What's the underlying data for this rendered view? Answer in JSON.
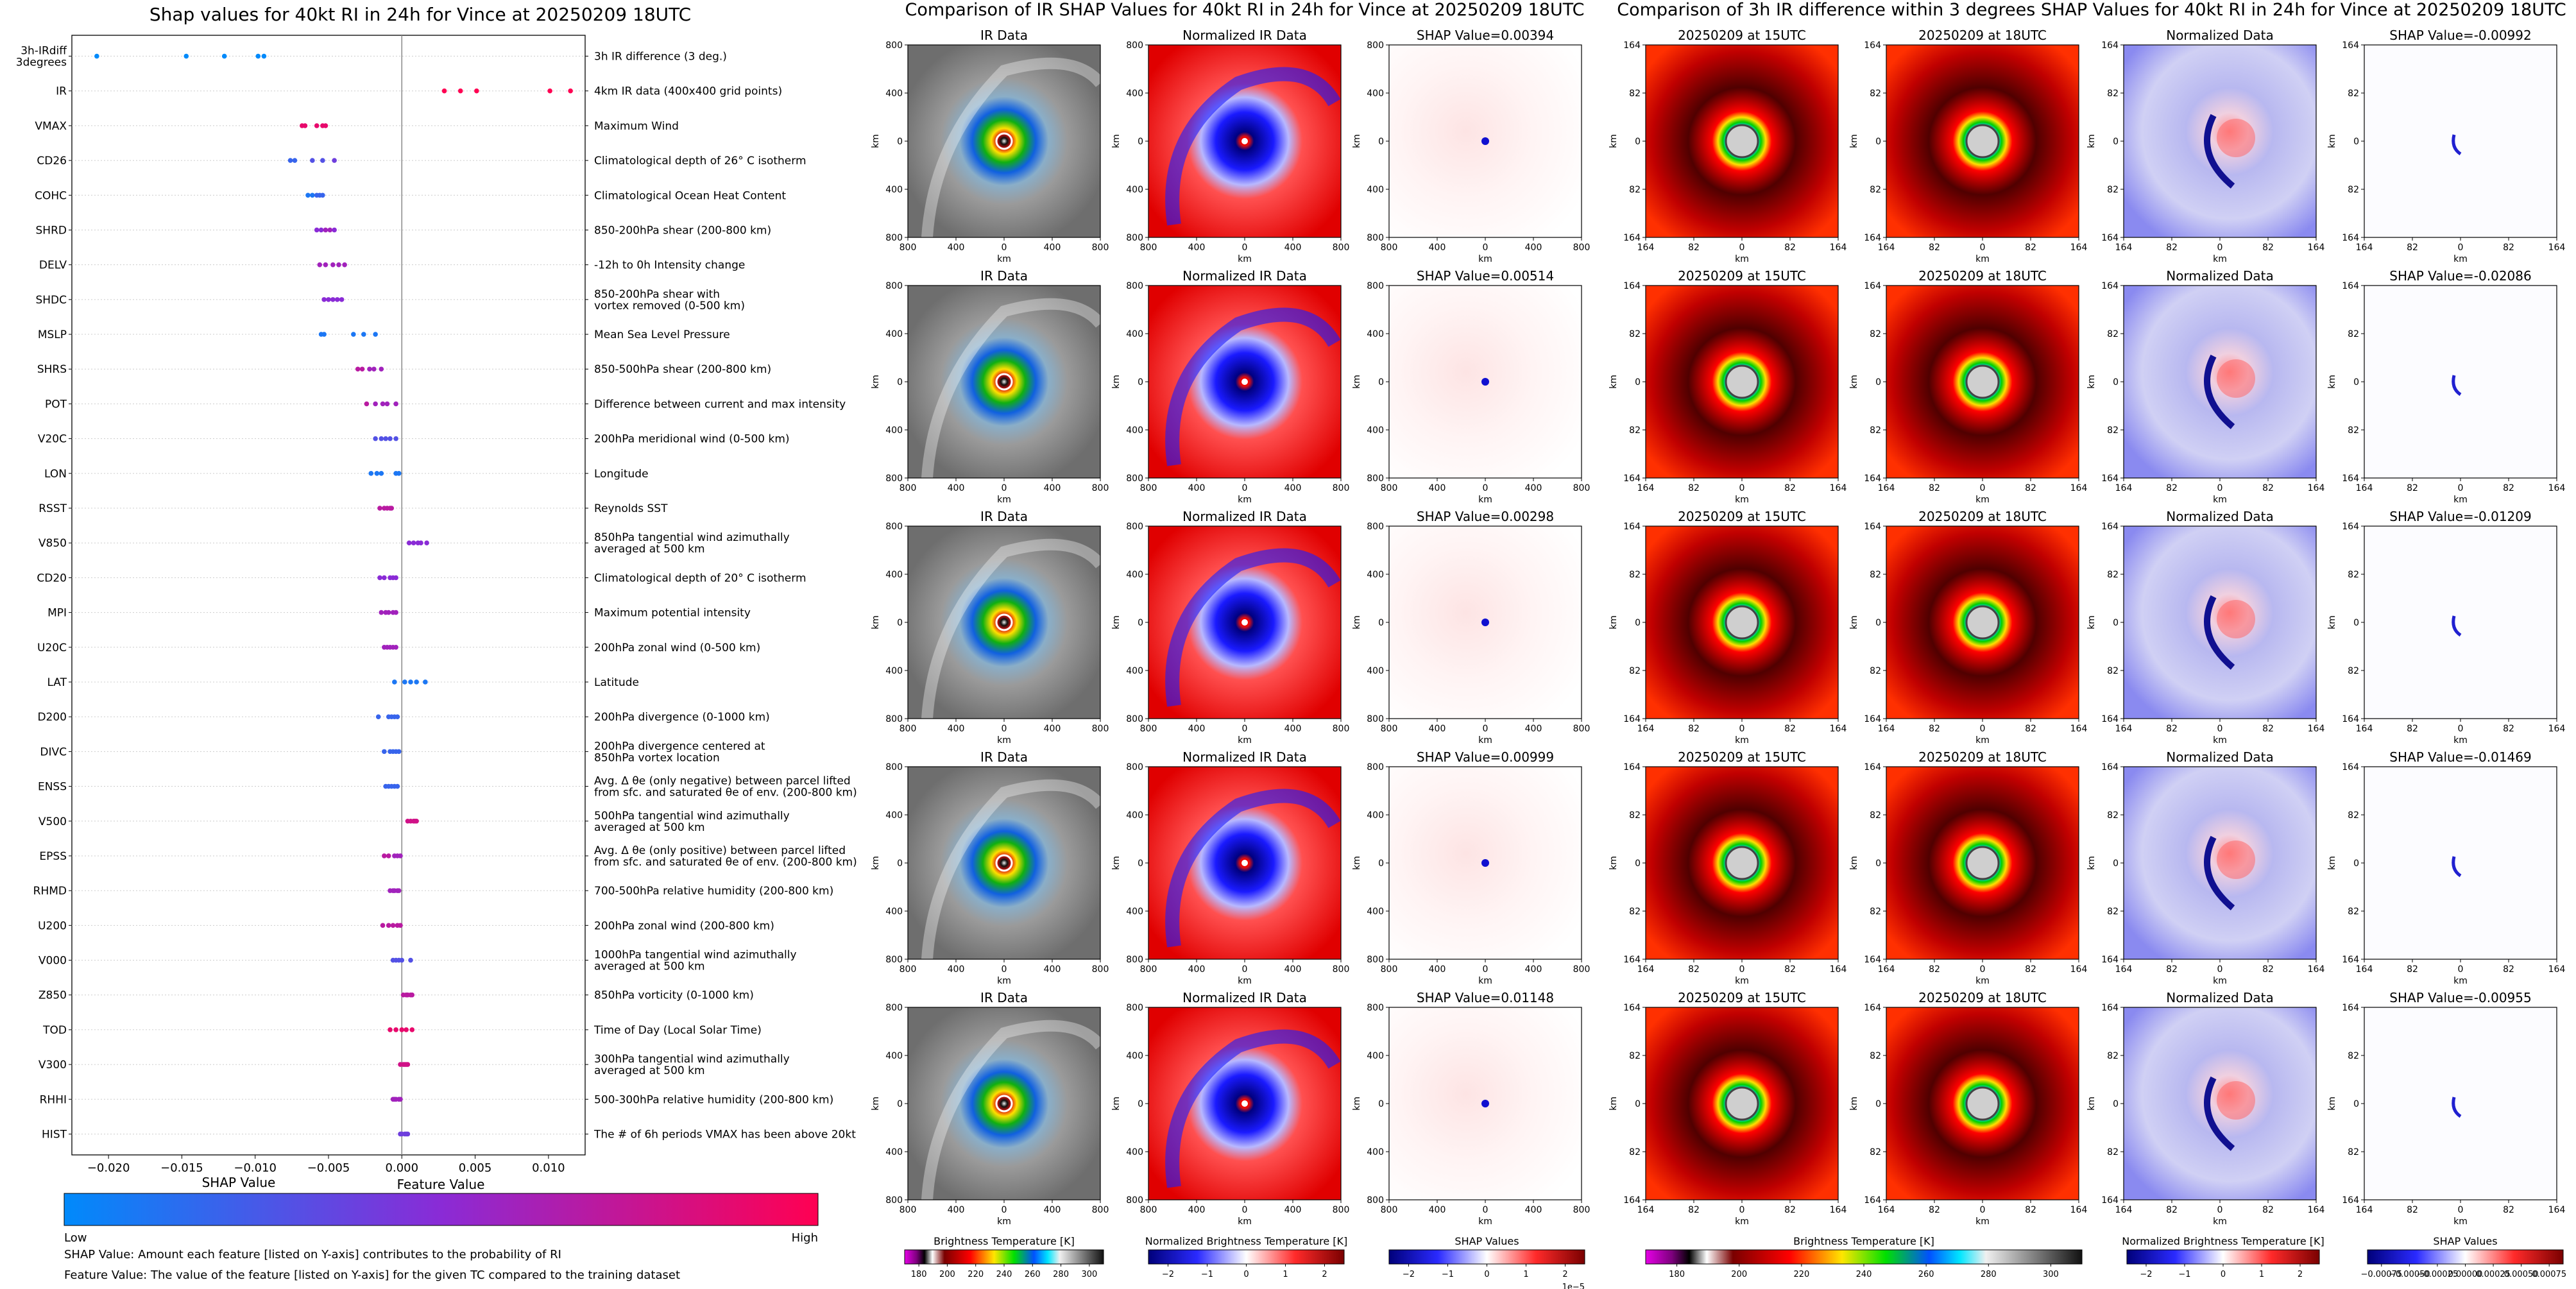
{
  "left_panel": {
    "title": "Shap values for 40kt RI in 24h for Vince at 20250209 18UTC",
    "xlabel": "SHAP Value",
    "xticks": [
      "−0.020",
      "−0.015",
      "−0.010",
      "−0.005",
      "0.000",
      "0.005",
      "0.010"
    ],
    "colorbar_title": "Feature Value",
    "colorbar_low": "Low",
    "colorbar_high": "High",
    "notes": [
      "SHAP Value: Amount each feature [listed on Y-axis] contributes to the probability of RI",
      "Feature Value: The value of the feature [listed on Y-axis] for the given TC compared to the training dataset"
    ]
  },
  "chart_data": [
    {
      "type": "scatter",
      "title": "Shap values for 40kt RI in 24h for Vince at 20250209 18UTC",
      "xlabel": "SHAP Value",
      "xlim": [
        -0.0225,
        0.0125
      ],
      "colors": {
        "low": "#008afb",
        "high": "#ff0052"
      },
      "features": [
        {
          "name": "3h-IRdiff\n3degrees",
          "desc": "3h IR difference (3 deg.)",
          "points": [
            [
              -0.0208,
              0
            ],
            [
              -0.0147,
              0
            ],
            [
              -0.0121,
              0
            ],
            [
              -0.0098,
              0
            ],
            [
              -0.0094,
              0
            ]
          ]
        },
        {
          "name": "IR",
          "desc": "4km IR data (400x400 grid points)",
          "points": [
            [
              0.0029,
              1
            ],
            [
              0.004,
              1
            ],
            [
              0.0051,
              1
            ],
            [
              0.0101,
              1
            ],
            [
              0.0115,
              1
            ]
          ]
        },
        {
          "name": "VMAX",
          "desc": "Maximum Wind",
          "points": [
            [
              -0.0068,
              0.9
            ],
            [
              -0.0066,
              0.9
            ],
            [
              -0.0058,
              0.9
            ],
            [
              -0.0054,
              0.9
            ],
            [
              -0.0052,
              0.9
            ]
          ]
        },
        {
          "name": "CD26",
          "desc": "Climatological depth of 26° C isotherm",
          "points": [
            [
              -0.0076,
              0.2
            ],
            [
              -0.0073,
              0.2
            ],
            [
              -0.0061,
              0.3
            ],
            [
              -0.0054,
              0.3
            ],
            [
              -0.0046,
              0.4
            ]
          ]
        },
        {
          "name": "COHC",
          "desc": "Climatological Ocean Heat Content",
          "points": [
            [
              -0.0064,
              0.1
            ],
            [
              -0.0061,
              0.1
            ],
            [
              -0.0058,
              0.2
            ],
            [
              -0.0056,
              0.2
            ],
            [
              -0.0054,
              0.2
            ]
          ]
        },
        {
          "name": "SHRD",
          "desc": "850-200hPa shear (200-800 km)",
          "points": [
            [
              -0.0058,
              0.5
            ],
            [
              -0.0055,
              0.5
            ],
            [
              -0.0052,
              0.6
            ],
            [
              -0.0049,
              0.6
            ],
            [
              -0.0046,
              0.5
            ]
          ]
        },
        {
          "name": "DELV",
          "desc": "-12h to 0h Intensity change",
          "points": [
            [
              -0.0056,
              0.6
            ],
            [
              -0.0052,
              0.6
            ],
            [
              -0.0047,
              0.6
            ],
            [
              -0.0043,
              0.6
            ],
            [
              -0.0039,
              0.6
            ]
          ]
        },
        {
          "name": "SHDC",
          "desc": "850-200hPa shear with\nvortex removed (0-500 km)",
          "points": [
            [
              -0.0053,
              0.5
            ],
            [
              -0.005,
              0.5
            ],
            [
              -0.0047,
              0.5
            ],
            [
              -0.0044,
              0.5
            ],
            [
              -0.0041,
              0.5
            ]
          ]
        },
        {
          "name": "MSLP",
          "desc": "Mean Sea Level Pressure",
          "points": [
            [
              -0.0055,
              0.1
            ],
            [
              -0.0053,
              0.1
            ],
            [
              -0.0033,
              0.1
            ],
            [
              -0.0026,
              0.1
            ],
            [
              -0.0018,
              0.1
            ]
          ]
        },
        {
          "name": "SHRS",
          "desc": "850-500hPa shear (200-800 km)",
          "points": [
            [
              -0.003,
              0.7
            ],
            [
              -0.0027,
              0.7
            ],
            [
              -0.0022,
              0.6
            ],
            [
              -0.0019,
              0.6
            ],
            [
              -0.0014,
              0.6
            ]
          ]
        },
        {
          "name": "POT",
          "desc": "Difference between current and max intensity",
          "points": [
            [
              -0.0024,
              0.7
            ],
            [
              -0.0018,
              0.6
            ],
            [
              -0.0013,
              0.6
            ],
            [
              -0.001,
              0.6
            ],
            [
              -0.0004,
              0.6
            ]
          ]
        },
        {
          "name": "V20C",
          "desc": "200hPa meridional wind (0-500 km)",
          "points": [
            [
              -0.0018,
              0.3
            ],
            [
              -0.0014,
              0.3
            ],
            [
              -0.0011,
              0.3
            ],
            [
              -0.0008,
              0.3
            ],
            [
              -0.0004,
              0.3
            ]
          ]
        },
        {
          "name": "LON",
          "desc": "Longitude",
          "points": [
            [
              -0.0021,
              0.1
            ],
            [
              -0.0017,
              0.1
            ],
            [
              -0.0014,
              0.1
            ],
            [
              -0.0004,
              0.1
            ],
            [
              -0.0002,
              0.1
            ]
          ]
        },
        {
          "name": "RSST",
          "desc": "Reynolds SST",
          "points": [
            [
              -0.0015,
              0.7
            ],
            [
              -0.0012,
              0.7
            ],
            [
              -0.001,
              0.7
            ],
            [
              -0.0008,
              0.7
            ],
            [
              -0.0007,
              0.7
            ]
          ]
        },
        {
          "name": "V850",
          "desc": "850hPa tangential wind azimuthally\naveraged at 500 km",
          "points": [
            [
              0.0005,
              0.5
            ],
            [
              0.0008,
              0.5
            ],
            [
              0.0011,
              0.5
            ],
            [
              0.0013,
              0.5
            ],
            [
              0.0017,
              0.5
            ]
          ]
        },
        {
          "name": "CD20",
          "desc": "Climatological depth of 20° C isotherm",
          "points": [
            [
              -0.0015,
              0.5
            ],
            [
              -0.0012,
              0.5
            ],
            [
              -0.0008,
              0.5
            ],
            [
              -0.0006,
              0.5
            ],
            [
              -0.0004,
              0.5
            ]
          ]
        },
        {
          "name": "MPI",
          "desc": "Maximum potential intensity",
          "points": [
            [
              -0.0014,
              0.6
            ],
            [
              -0.0011,
              0.6
            ],
            [
              -0.0009,
              0.6
            ],
            [
              -0.0006,
              0.6
            ],
            [
              -0.0004,
              0.6
            ]
          ]
        },
        {
          "name": "U20C",
          "desc": "200hPa zonal wind (0-500 km)",
          "points": [
            [
              -0.0012,
              0.6
            ],
            [
              -0.001,
              0.6
            ],
            [
              -0.0008,
              0.6
            ],
            [
              -0.0006,
              0.6
            ],
            [
              -0.0004,
              0.6
            ]
          ]
        },
        {
          "name": "LAT",
          "desc": "Latitude",
          "points": [
            [
              -0.0005,
              0.1
            ],
            [
              0.0002,
              0.1
            ],
            [
              0.0006,
              0.1
            ],
            [
              0.001,
              0.1
            ],
            [
              0.0016,
              0.1
            ]
          ]
        },
        {
          "name": "D200",
          "desc": "200hPa divergence (0-1000 km)",
          "points": [
            [
              -0.0016,
              0.2
            ],
            [
              -0.0009,
              0.2
            ],
            [
              -0.0007,
              0.2
            ],
            [
              -0.0005,
              0.2
            ],
            [
              -0.0003,
              0.2
            ]
          ]
        },
        {
          "name": "DIVC",
          "desc": "200hPa divergence centered at\n850hPa vortex location",
          "points": [
            [
              -0.0012,
              0.2
            ],
            [
              -0.0008,
              0.2
            ],
            [
              -0.0006,
              0.2
            ],
            [
              -0.0004,
              0.2
            ],
            [
              -0.0002,
              0.2
            ]
          ]
        },
        {
          "name": "ENSS",
          "desc": "Avg. Δ θe (only negative) between parcel lifted\nfrom sfc. and saturated θe of env. (200-800 km)",
          "points": [
            [
              -0.0011,
              0.2
            ],
            [
              -0.0009,
              0.2
            ],
            [
              -0.0007,
              0.2
            ],
            [
              -0.0005,
              0.2
            ],
            [
              -0.0003,
              0.2
            ]
          ]
        },
        {
          "name": "V500",
          "desc": "500hPa tangential wind azimuthally\naveraged at 500 km",
          "points": [
            [
              0.0004,
              0.8
            ],
            [
              0.0006,
              0.8
            ],
            [
              0.0008,
              0.8
            ],
            [
              0.0009,
              0.8
            ],
            [
              0.001,
              0.8
            ]
          ]
        },
        {
          "name": "EPSS",
          "desc": "Avg. Δ θe (only positive) between parcel lifted\nfrom sfc. and saturated θe of env. (200-800 km)",
          "points": [
            [
              -0.0012,
              0.7
            ],
            [
              -0.0009,
              0.7
            ],
            [
              -0.0005,
              0.6
            ],
            [
              -0.0003,
              0.6
            ],
            [
              -0.0001,
              0.6
            ]
          ]
        },
        {
          "name": "RHMD",
          "desc": "700-500hPa relative humidity (200-800 km)",
          "points": [
            [
              -0.0008,
              0.6
            ],
            [
              -0.0006,
              0.6
            ],
            [
              -0.0005,
              0.6
            ],
            [
              -0.0003,
              0.6
            ],
            [
              -0.0002,
              0.6
            ]
          ]
        },
        {
          "name": "U200",
          "desc": "200hPa zonal wind (200-800 km)",
          "points": [
            [
              -0.0013,
              0.7
            ],
            [
              -0.0009,
              0.7
            ],
            [
              -0.0006,
              0.7
            ],
            [
              -0.0003,
              0.7
            ],
            [
              -0.0001,
              0.7
            ]
          ]
        },
        {
          "name": "V000",
          "desc": "1000hPa tangential wind azimuthally\naveraged at 500 km",
          "points": [
            [
              -0.0006,
              0.3
            ],
            [
              -0.0004,
              0.3
            ],
            [
              -0.0002,
              0.3
            ],
            [
              0.0,
              0.3
            ],
            [
              0.0006,
              0.3
            ]
          ]
        },
        {
          "name": "Z850",
          "desc": "850hPa vorticity (0-1000 km)",
          "points": [
            [
              0.0001,
              0.7
            ],
            [
              0.0003,
              0.7
            ],
            [
              0.0004,
              0.7
            ],
            [
              0.0006,
              0.7
            ],
            [
              0.0007,
              0.7
            ]
          ]
        },
        {
          "name": "TOD",
          "desc": "Time of Day (Local Solar Time)",
          "points": [
            [
              -0.0008,
              0.9
            ],
            [
              -0.0004,
              0.9
            ],
            [
              0.0,
              0.9
            ],
            [
              0.0003,
              0.9
            ],
            [
              0.0007,
              0.9
            ]
          ]
        },
        {
          "name": "V300",
          "desc": "300hPa tangential wind azimuthally\naveraged at 500 km",
          "points": [
            [
              -0.0001,
              0.8
            ],
            [
              0.0001,
              0.8
            ],
            [
              0.0002,
              0.8
            ],
            [
              0.0003,
              0.8
            ],
            [
              0.0004,
              0.8
            ]
          ]
        },
        {
          "name": "RHHI",
          "desc": "500-300hPa relative humidity (200-800 km)",
          "points": [
            [
              -0.0006,
              0.6
            ],
            [
              -0.0005,
              0.6
            ],
            [
              -0.0004,
              0.6
            ],
            [
              -0.0002,
              0.6
            ],
            [
              -0.0001,
              0.6
            ]
          ]
        },
        {
          "name": "HIST",
          "desc": "The # of 6h periods VMAX has been above 20kt",
          "points": [
            [
              -0.0001,
              0.4
            ],
            [
              0.0,
              0.4
            ],
            [
              0.0002,
              0.4
            ],
            [
              0.0003,
              0.4
            ],
            [
              0.0004,
              0.4
            ]
          ]
        }
      ]
    },
    {
      "type": "heatmap",
      "title": "Comparison of IR SHAP Values for 40kt RI in 24h for Vince at 20250209 18UTC",
      "columns": [
        "IR Data",
        "Normalized IR Data",
        "SHAP"
      ],
      "shap_values": [
        "0.00394",
        "0.00514",
        "0.00298",
        "0.00999",
        "0.01148"
      ],
      "shap_prefix": "SHAP Value=",
      "xlabel": "km",
      "ylabel": "km",
      "ticks": [
        "800",
        "400",
        "0",
        "400",
        "800"
      ],
      "colorbars": [
        {
          "label": "Brightness Temperature [K]",
          "ticks": [
            "180",
            "200",
            "220",
            "240",
            "260",
            "280",
            "300"
          ]
        },
        {
          "label": "Normalized Brightness Temperature [K]",
          "ticks": [
            "−2",
            "−1",
            "0",
            "1",
            "2"
          ]
        },
        {
          "label": "SHAP Values",
          "ticks": [
            "−2",
            "−1",
            "0",
            "1",
            "2"
          ],
          "exponent": "1e−5"
        }
      ]
    },
    {
      "type": "heatmap",
      "title": "Comparison of 3h IR difference within 3 degrees SHAP Values for 40kt RI in 24h for Vince at 20250209 18UTC",
      "columns": [
        "20250209 at 15UTC",
        "20250209 at 18UTC",
        "Normalized Data",
        "SHAP"
      ],
      "shap_values": [
        "-0.00992",
        "-0.02086",
        "-0.01209",
        "-0.01469",
        "-0.00955"
      ],
      "shap_prefix": "SHAP Value=",
      "xlabel": "km",
      "ylabel": "km",
      "ticks": [
        "164",
        "82",
        "0",
        "82",
        "164"
      ],
      "colorbars": [
        {
          "label": "Brightness Temperature [K]",
          "ticks": [
            "180",
            "200",
            "220",
            "240",
            "260",
            "280",
            "300"
          ]
        },
        {
          "label": "Normalized Brightness Temperature [K]",
          "ticks": [
            "−2",
            "−1",
            "0",
            "1",
            "2"
          ]
        },
        {
          "label": "SHAP Values",
          "ticks": [
            "−0.00075",
            "−0.00050",
            "−0.00025",
            "0.00000",
            "0.00025",
            "0.00050",
            "0.00075"
          ]
        }
      ]
    }
  ]
}
